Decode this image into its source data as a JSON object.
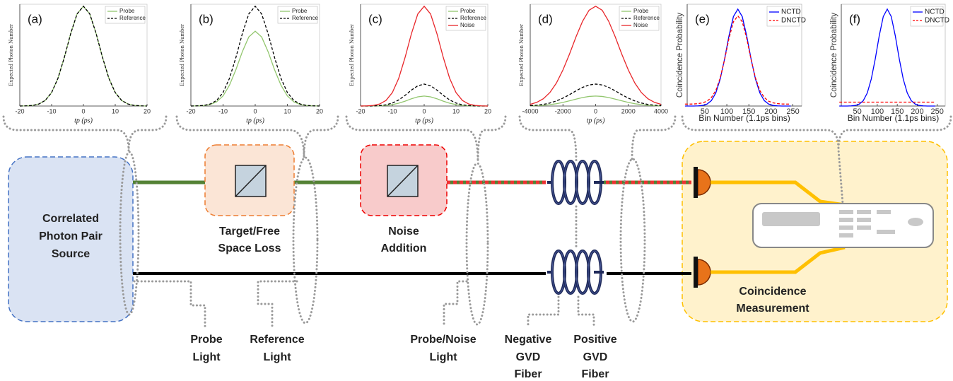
{
  "chart_data": [
    {
      "type": "line",
      "panel": "(a)",
      "ylabel": "Expected Photon Number",
      "xlabel": "tp (ps)",
      "legend": "upper right",
      "x": [
        -20,
        -18,
        -16,
        -14,
        -12,
        -10,
        -8,
        -6,
        -4,
        -2,
        0,
        2,
        4,
        6,
        8,
        10,
        12,
        14,
        16,
        18,
        20
      ],
      "xlim": [
        -20,
        20
      ],
      "ylim": [
        0,
        1.02
      ],
      "xticks": [
        -20,
        -10,
        0,
        10,
        20
      ],
      "series": [
        {
          "name": "Probe",
          "color": "#92c66e",
          "dash": false,
          "values": [
            0,
            0.002,
            0.006,
            0.02,
            0.056,
            0.135,
            0.278,
            0.487,
            0.726,
            0.923,
            1,
            0.923,
            0.726,
            0.487,
            0.278,
            0.135,
            0.056,
            0.02,
            0.006,
            0.002,
            0
          ]
        },
        {
          "name": "Reference",
          "color": "#000000",
          "dash": true,
          "values": [
            0,
            0.002,
            0.006,
            0.02,
            0.056,
            0.135,
            0.278,
            0.487,
            0.726,
            0.923,
            1,
            0.923,
            0.726,
            0.487,
            0.278,
            0.135,
            0.056,
            0.02,
            0.006,
            0.002,
            0
          ]
        }
      ]
    },
    {
      "type": "line",
      "panel": "(b)",
      "ylabel": "Expected Photon Number",
      "xlabel": "tp (ps)",
      "legend": "upper right",
      "x": [
        -20,
        -18,
        -16,
        -14,
        -12,
        -10,
        -8,
        -6,
        -4,
        -2,
        0,
        2,
        4,
        6,
        8,
        10,
        12,
        14,
        16,
        18,
        20
      ],
      "xlim": [
        -20,
        20
      ],
      "ylim": [
        0,
        1.02
      ],
      "xticks": [
        -20,
        -10,
        0,
        10,
        20
      ],
      "series": [
        {
          "name": "Probe",
          "color": "#92c66e",
          "dash": false,
          "values": [
            0,
            0.002,
            0.005,
            0.015,
            0.042,
            0.101,
            0.209,
            0.365,
            0.545,
            0.692,
            0.75,
            0.692,
            0.545,
            0.365,
            0.209,
            0.101,
            0.042,
            0.015,
            0.005,
            0.002,
            0
          ]
        },
        {
          "name": "Reference",
          "color": "#000000",
          "dash": true,
          "values": [
            0,
            0.002,
            0.006,
            0.02,
            0.056,
            0.135,
            0.278,
            0.487,
            0.726,
            0.923,
            1,
            0.923,
            0.726,
            0.487,
            0.278,
            0.135,
            0.056,
            0.02,
            0.006,
            0.002,
            0
          ]
        }
      ]
    },
    {
      "type": "line",
      "panel": "(c)",
      "ylabel": "Expected Photon Number",
      "xlabel": "tp (ps)",
      "legend": "upper right",
      "x": [
        -20,
        -18,
        -16,
        -14,
        -12,
        -10,
        -8,
        -6,
        -4,
        -2,
        0,
        2,
        4,
        6,
        8,
        10,
        12,
        14,
        16,
        18,
        20
      ],
      "xlim": [
        -20,
        20
      ],
      "ylim": [
        0,
        1.02
      ],
      "xticks": [
        -20,
        -10,
        0,
        10,
        20
      ],
      "series": [
        {
          "name": "Probe",
          "color": "#92c66e",
          "dash": false,
          "values": [
            0,
            0,
            0.001,
            0.002,
            0.006,
            0.014,
            0.028,
            0.049,
            0.073,
            0.092,
            0.1,
            0.092,
            0.073,
            0.049,
            0.028,
            0.014,
            0.006,
            0.002,
            0.001,
            0,
            0
          ]
        },
        {
          "name": "Reference",
          "color": "#000000",
          "dash": true,
          "values": [
            0,
            0,
            0.001,
            0.004,
            0.012,
            0.03,
            0.061,
            0.107,
            0.16,
            0.203,
            0.22,
            0.203,
            0.16,
            0.107,
            0.061,
            0.03,
            0.012,
            0.004,
            0.001,
            0,
            0
          ]
        },
        {
          "name": "Noise",
          "color": "#e8262a",
          "dash": false,
          "values": [
            0,
            0.002,
            0.006,
            0.02,
            0.056,
            0.135,
            0.278,
            0.487,
            0.726,
            0.923,
            1,
            0.923,
            0.726,
            0.487,
            0.278,
            0.135,
            0.056,
            0.02,
            0.006,
            0.002,
            0
          ]
        }
      ]
    },
    {
      "type": "line",
      "panel": "(d)",
      "ylabel": "Expected Photon Number",
      "xlabel": "tp (ps)",
      "legend": "upper right",
      "x": [
        -4000,
        -3600,
        -3200,
        -2800,
        -2400,
        -2000,
        -1600,
        -1200,
        -800,
        -400,
        0,
        400,
        800,
        1200,
        1600,
        2000,
        2400,
        2800,
        3200,
        3600,
        4000
      ],
      "xlim": [
        -4000,
        4000
      ],
      "ylim": [
        0,
        1.02
      ],
      "xticks": [
        -4000,
        -2000,
        0,
        2000,
        4000
      ],
      "series": [
        {
          "name": "Probe",
          "color": "#92c66e",
          "dash": false,
          "values": [
            0.002,
            0.004,
            0.007,
            0.014,
            0.023,
            0.036,
            0.052,
            0.069,
            0.085,
            0.096,
            0.1,
            0.096,
            0.085,
            0.069,
            0.052,
            0.036,
            0.023,
            0.014,
            0.007,
            0.004,
            0.002
          ]
        },
        {
          "name": "Reference",
          "color": "#000000",
          "dash": true,
          "values": [
            0.004,
            0.008,
            0.016,
            0.03,
            0.051,
            0.079,
            0.114,
            0.152,
            0.187,
            0.211,
            0.22,
            0.211,
            0.187,
            0.152,
            0.114,
            0.079,
            0.051,
            0.03,
            0.016,
            0.008,
            0.004
          ]
        },
        {
          "name": "Noise",
          "color": "#e8262a",
          "dash": false,
          "values": [
            0.017,
            0.037,
            0.073,
            0.135,
            0.23,
            0.361,
            0.52,
            0.693,
            0.849,
            0.96,
            1,
            0.96,
            0.849,
            0.693,
            0.52,
            0.361,
            0.23,
            0.135,
            0.073,
            0.037,
            0.017
          ]
        }
      ]
    },
    {
      "type": "line",
      "panel": "(e)",
      "ylabel": "Coincidence Probability",
      "xlabel": "Bin Number (1.1ps bins)",
      "legend": "upper right",
      "x": [
        5,
        15,
        25,
        35,
        45,
        55,
        65,
        75,
        85,
        95,
        105,
        115,
        125,
        135,
        145,
        155,
        165,
        175,
        185,
        195,
        205,
        215,
        225,
        235,
        245
      ],
      "xlim": [
        10,
        270
      ],
      "ylim": [
        0,
        1.05
      ],
      "xticks": [
        50,
        100,
        150,
        200,
        250
      ],
      "series": [
        {
          "name": "NCTD",
          "color": "#0000ff",
          "dash": false,
          "values": [
            0,
            0,
            0,
            0.002,
            0.006,
            0.02,
            0.056,
            0.135,
            0.278,
            0.487,
            0.726,
            0.923,
            1,
            0.923,
            0.726,
            0.487,
            0.278,
            0.135,
            0.056,
            0.02,
            0.006,
            0.002,
            0,
            0,
            0
          ]
        },
        {
          "name": "DNCTD",
          "color": "#ff0000",
          "dash": true,
          "values": [
            0.02,
            0.02,
            0.021,
            0.025,
            0.033,
            0.05,
            0.088,
            0.16,
            0.29,
            0.48,
            0.7,
            0.87,
            0.93,
            0.87,
            0.7,
            0.48,
            0.29,
            0.16,
            0.088,
            0.05,
            0.033,
            0.025,
            0.021,
            0.02,
            0.02
          ]
        }
      ]
    },
    {
      "type": "line",
      "panel": "(f)",
      "ylabel": "Coincidence Probability",
      "xlabel": "Bin Number (1.1ps bins)",
      "legend": "upper right",
      "x": [
        5,
        15,
        25,
        35,
        45,
        55,
        65,
        75,
        85,
        95,
        105,
        115,
        125,
        135,
        145,
        155,
        165,
        175,
        185,
        195,
        205,
        215,
        225,
        235,
        245
      ],
      "xlim": [
        10,
        270
      ],
      "ylim": [
        0,
        1.05
      ],
      "xticks": [
        50,
        100,
        150,
        200,
        250
      ],
      "series": [
        {
          "name": "NCTD",
          "color": "#0000ff",
          "dash": false,
          "values": [
            0,
            0,
            0,
            0.002,
            0.006,
            0.02,
            0.056,
            0.135,
            0.278,
            0.487,
            0.726,
            0.923,
            1,
            0.923,
            0.726,
            0.487,
            0.278,
            0.135,
            0.056,
            0.02,
            0.006,
            0.002,
            0,
            0,
            0
          ]
        },
        {
          "name": "DNCTD",
          "color": "#ff0000",
          "dash": true,
          "values": [
            0.04,
            0.04,
            0.04,
            0.04,
            0.04,
            0.04,
            0.04,
            0.04,
            0.04,
            0.04,
            0.04,
            0.04,
            0.04,
            0.04,
            0.04,
            0.04,
            0.04,
            0.04,
            0.04,
            0.04,
            0.04,
            0.04,
            0.04,
            0.04,
            0.04
          ]
        }
      ]
    }
  ],
  "diagram": {
    "source": [
      "Correlated",
      "Photon Pair",
      "Source"
    ],
    "loss": [
      "Target/Free",
      "Space Loss"
    ],
    "noise": [
      "Noise",
      "Addition"
    ],
    "coincidence": [
      "Coincidence",
      "Measurement"
    ],
    "probe_light": [
      "Probe",
      "Light"
    ],
    "reference_light": [
      "Reference",
      "Light"
    ],
    "probe_noise_light": [
      "Probe/Noise",
      "Light"
    ],
    "negative_gvd": [
      "Negative",
      "GVD",
      "Fiber"
    ],
    "positive_gvd": [
      "Positive",
      "GVD",
      "Fiber"
    ]
  }
}
